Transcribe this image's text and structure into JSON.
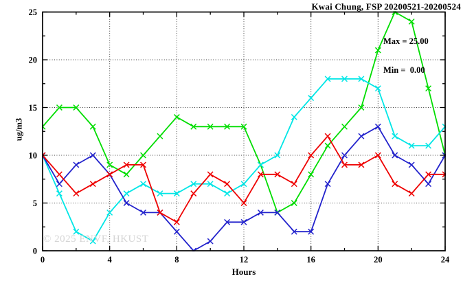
{
  "title": "Kwai Chung, FSP 20200521-20200524",
  "stats": {
    "max_label": "Max = 25.00",
    "min_label": "Min =  0.00"
  },
  "watermark": "© 2025 ENVF, HKUST",
  "chart_data": {
    "type": "line",
    "title": "Kwai Chung, FSP 20200521-20200524",
    "xlabel": "Hours",
    "ylabel": "ug/m3",
    "xlim": [
      0,
      24
    ],
    "ylim": [
      0,
      25
    ],
    "x_major_ticks": [
      0,
      4,
      8,
      12,
      16,
      20,
      24
    ],
    "x_minor_step": 2,
    "y_major_ticks": [
      0,
      5,
      10,
      15,
      20,
      25
    ],
    "y_minor_step": 2.5,
    "grid_x": [
      4,
      8,
      12,
      16,
      20
    ],
    "grid_y": [
      5,
      10,
      15,
      20
    ],
    "grid_on": true,
    "legend_position": "none",
    "max": 25.0,
    "min": 0.0,
    "x": [
      0,
      1,
      2,
      3,
      4,
      5,
      6,
      7,
      8,
      9,
      10,
      11,
      12,
      13,
      14,
      15,
      16,
      17,
      18,
      19,
      20,
      21,
      22,
      23,
      24
    ],
    "series": [
      {
        "name": "green",
        "color": "#00dd00",
        "values": [
          13,
          15,
          15,
          13,
          9,
          8,
          10,
          12,
          14,
          13,
          13,
          13,
          13,
          9,
          4,
          5,
          8,
          11,
          13,
          15,
          21,
          25,
          24,
          17,
          10
        ]
      },
      {
        "name": "cyan",
        "color": "#00e6e6",
        "values": [
          10,
          6,
          2,
          1,
          4,
          6,
          7,
          6,
          6,
          7,
          7,
          6,
          7,
          9,
          10,
          14,
          16,
          18,
          18,
          18,
          17,
          12,
          11,
          11,
          13
        ]
      },
      {
        "name": "blue",
        "color": "#2222cc",
        "values": [
          10,
          7,
          9,
          10,
          8,
          5,
          4,
          4,
          2,
          0,
          1,
          3,
          3,
          4,
          4,
          2,
          2,
          7,
          10,
          12,
          13,
          10,
          9,
          7,
          10
        ]
      },
      {
        "name": "red",
        "color": "#ee0000",
        "values": [
          10,
          8,
          6,
          7,
          8,
          9,
          9,
          4,
          3,
          6,
          8,
          7,
          5,
          8,
          8,
          7,
          10,
          12,
          9,
          9,
          10,
          7,
          6,
          8,
          8
        ]
      }
    ]
  }
}
